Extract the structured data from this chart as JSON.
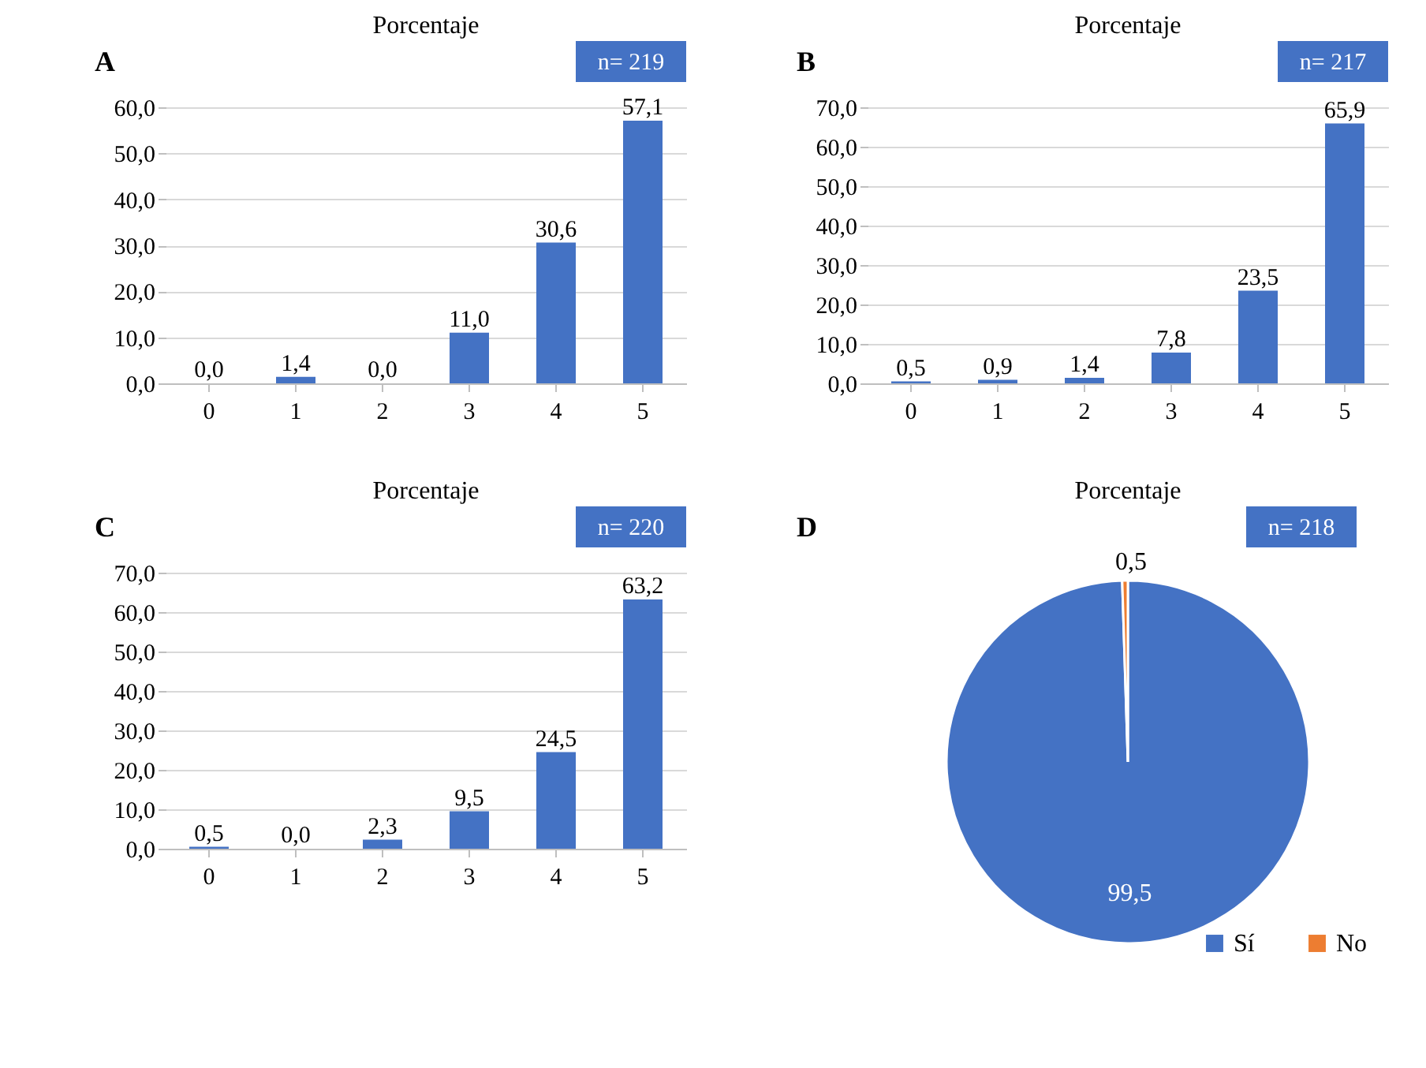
{
  "chart_data": [
    {
      "type": "bar",
      "title": "Porcentaje",
      "annotations": [
        "A",
        "n= 219"
      ],
      "categories": [
        "0",
        "1",
        "2",
        "3",
        "4",
        "5"
      ],
      "values": [
        0.0,
        1.4,
        0.0,
        11.0,
        30.6,
        57.1
      ],
      "value_labels": [
        "0,0",
        "1,4",
        "0,0",
        "11,0",
        "30,6",
        "57,1"
      ],
      "color": "#4472c4",
      "ylim": [
        0,
        60
      ],
      "yticks": [
        {
          "value": 0,
          "label": "0,0"
        },
        {
          "value": 10,
          "label": "10,0"
        },
        {
          "value": 20,
          "label": "20,0"
        },
        {
          "value": 30,
          "label": "30,0"
        },
        {
          "value": 40,
          "label": "40,0"
        },
        {
          "value": 50,
          "label": "50,0"
        },
        {
          "value": 60,
          "label": "60,0"
        }
      ],
      "grid": "y",
      "legend": false
    },
    {
      "type": "bar",
      "title": "Porcentaje",
      "annotations": [
        "B",
        "n= 217"
      ],
      "categories": [
        "0",
        "1",
        "2",
        "3",
        "4",
        "5"
      ],
      "values": [
        0.5,
        0.9,
        1.4,
        7.8,
        23.5,
        65.9
      ],
      "value_labels": [
        "0,5",
        "0,9",
        "1,4",
        "7,8",
        "23,5",
        "65,9"
      ],
      "color": "#4472c4",
      "ylim": [
        0,
        70
      ],
      "yticks": [
        {
          "value": 0,
          "label": "0,0"
        },
        {
          "value": 10,
          "label": "10,0"
        },
        {
          "value": 20,
          "label": "20,0"
        },
        {
          "value": 30,
          "label": "30,0"
        },
        {
          "value": 40,
          "label": "40,0"
        },
        {
          "value": 50,
          "label": "50,0"
        },
        {
          "value": 60,
          "label": "60,0"
        },
        {
          "value": 70,
          "label": "70,0"
        }
      ],
      "grid": "y",
      "legend": false
    },
    {
      "type": "bar",
      "title": "Porcentaje",
      "annotations": [
        "C",
        "n= 220"
      ],
      "categories": [
        "0",
        "1",
        "2",
        "3",
        "4",
        "5"
      ],
      "values": [
        0.5,
        0.0,
        2.3,
        9.5,
        24.5,
        63.2
      ],
      "value_labels": [
        "0,5",
        "0,0",
        "2,3",
        "9,5",
        "24,5",
        "63,2"
      ],
      "color": "#4472c4",
      "ylim": [
        0,
        70
      ],
      "yticks": [
        {
          "value": 0,
          "label": "0,0"
        },
        {
          "value": 10,
          "label": "10,0"
        },
        {
          "value": 20,
          "label": "20,0"
        },
        {
          "value": 30,
          "label": "30,0"
        },
        {
          "value": 40,
          "label": "40,0"
        },
        {
          "value": 50,
          "label": "50,0"
        },
        {
          "value": 60,
          "label": "60,0"
        },
        {
          "value": 70,
          "label": "70,0"
        }
      ],
      "grid": "y",
      "legend": false
    },
    {
      "type": "pie",
      "title": "Porcentaje",
      "annotations": [
        "D",
        "n= 218"
      ],
      "categories": [
        "Sí",
        "No"
      ],
      "values": [
        99.5,
        0.5
      ],
      "value_labels": [
        "99,5",
        "0,5"
      ],
      "colors": [
        "#4472c4",
        "#ed7d31"
      ],
      "legend": "bottom right"
    }
  ]
}
